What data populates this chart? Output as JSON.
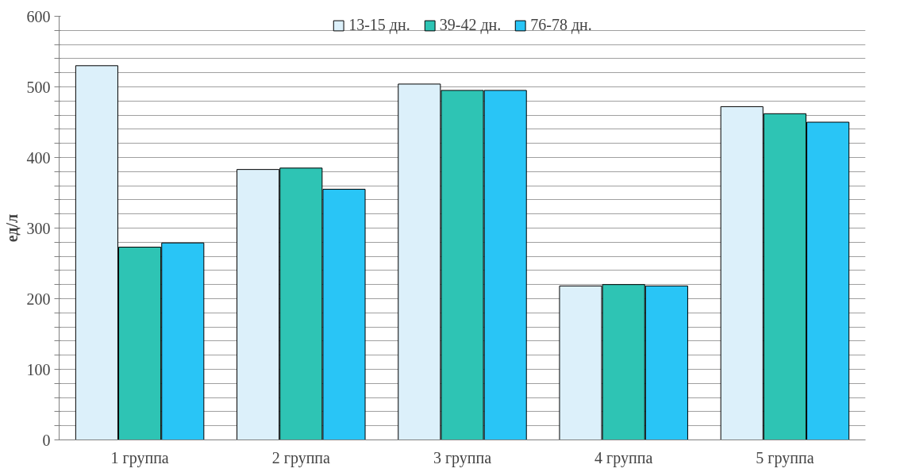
{
  "chart_data": {
    "type": "bar",
    "ylabel": "ед/л",
    "categories": [
      "1 группа",
      "2 группа",
      "3 группа",
      "4 группа",
      "5 группа"
    ],
    "series": [
      {
        "name": "13-15 дн.",
        "color": "#dcf0fa",
        "values": [
          530,
          383,
          504,
          218,
          472
        ]
      },
      {
        "name": "39-42 дн.",
        "color": "#2ec4b4",
        "values": [
          273,
          385,
          495,
          220,
          462
        ]
      },
      {
        "name": "76-78 дн.",
        "color": "#29c5f6",
        "values": [
          279,
          355,
          495,
          218,
          450
        ]
      }
    ],
    "ylim": [
      0,
      600
    ],
    "yticks": [
      0,
      {
        "value": 20,
        "label": null
      },
      {
        "value": 40,
        "label": null
      },
      {
        "value": 60,
        "label": null
      },
      {
        "value": 80,
        "label": null
      },
      100,
      {
        "value": 120,
        "label": null
      },
      {
        "value": 140,
        "label": null
      },
      {
        "value": 160,
        "label": null
      },
      {
        "value": 180,
        "label": null
      },
      200,
      {
        "value": 220,
        "label": null
      },
      {
        "value": 240,
        "label": null
      },
      {
        "value": 260,
        "label": null
      },
      {
        "value": 280,
        "label": null
      },
      300,
      {
        "value": 320,
        "label": null
      },
      {
        "value": 340,
        "label": null
      },
      {
        "value": 360,
        "label": null
      },
      {
        "value": 380,
        "label": null
      },
      400,
      {
        "value": 420,
        "label": null
      },
      {
        "value": 440,
        "label": null
      },
      {
        "value": 460,
        "label": null
      },
      {
        "value": 480,
        "label": null
      },
      500,
      {
        "value": 520,
        "label": null
      },
      {
        "value": 540,
        "label": null
      },
      {
        "value": 560,
        "label": null
      },
      {
        "value": 580,
        "label": null
      },
      600
    ],
    "grid": "y",
    "legend": "top"
  }
}
